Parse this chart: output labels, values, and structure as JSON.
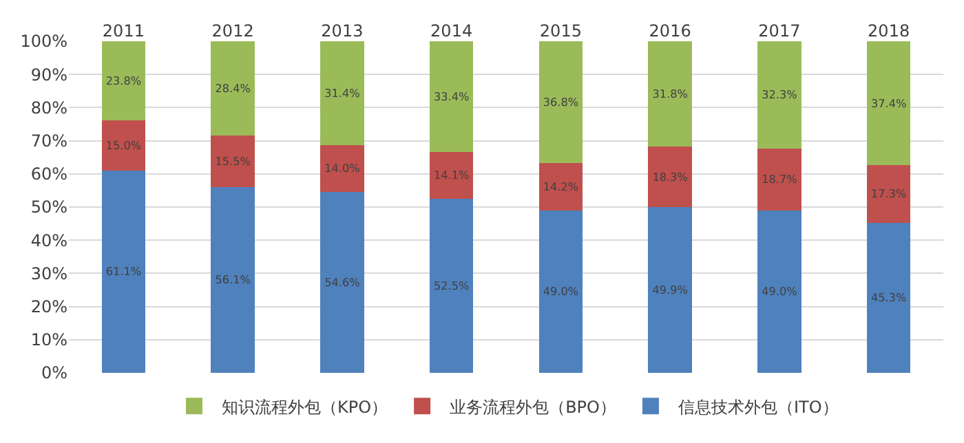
{
  "chart_data": {
    "type": "bar",
    "stacked": true,
    "categories": [
      "2011",
      "2012",
      "2013",
      "2014",
      "2015",
      "2016",
      "2017",
      "2018"
    ],
    "series": [
      {
        "name": "信息技术外包（ITO）",
        "color": "#4f81bd",
        "values": [
          61.1,
          56.1,
          54.6,
          52.5,
          49.0,
          49.9,
          49.0,
          45.3
        ],
        "value_labels": [
          "61.1%",
          "56.1%",
          "54.6%",
          "52.5%",
          "49.0%",
          "49.9%",
          "49.0%",
          "45.3%"
        ]
      },
      {
        "name": "业务流程外包（BPO）",
        "color": "#c0504d",
        "values": [
          15.0,
          15.5,
          14.0,
          14.1,
          14.2,
          18.3,
          18.7,
          17.3
        ],
        "value_labels": [
          "15.0%",
          "15.5%",
          "14.0%",
          "14.1%",
          "14.2%",
          "18.3%",
          "18.7%",
          "17.3%"
        ]
      },
      {
        "name": "知识流程外包（KPO）",
        "color": "#9bbb59",
        "values": [
          23.8,
          28.4,
          31.4,
          33.4,
          36.8,
          31.8,
          32.3,
          37.4
        ],
        "value_labels": [
          "23.8%",
          "28.4%",
          "31.4%",
          "33.4%",
          "36.8%",
          "31.8%",
          "32.3%",
          "37.4%"
        ]
      }
    ],
    "ylim": [
      0,
      100
    ],
    "yticks": [
      {
        "value": 0,
        "label": "0%"
      },
      {
        "value": 10,
        "label": "10%"
      },
      {
        "value": 20,
        "label": "20%"
      },
      {
        "value": 30,
        "label": "30%"
      },
      {
        "value": 40,
        "label": "40%"
      },
      {
        "value": 50,
        "label": "50%"
      },
      {
        "value": 60,
        "label": "60%"
      },
      {
        "value": 70,
        "label": "70%"
      },
      {
        "value": 80,
        "label": "80%"
      },
      {
        "value": 90,
        "label": "90%"
      },
      {
        "value": 100,
        "label": "100%"
      }
    ],
    "grid": "y",
    "legend": "bottom"
  }
}
